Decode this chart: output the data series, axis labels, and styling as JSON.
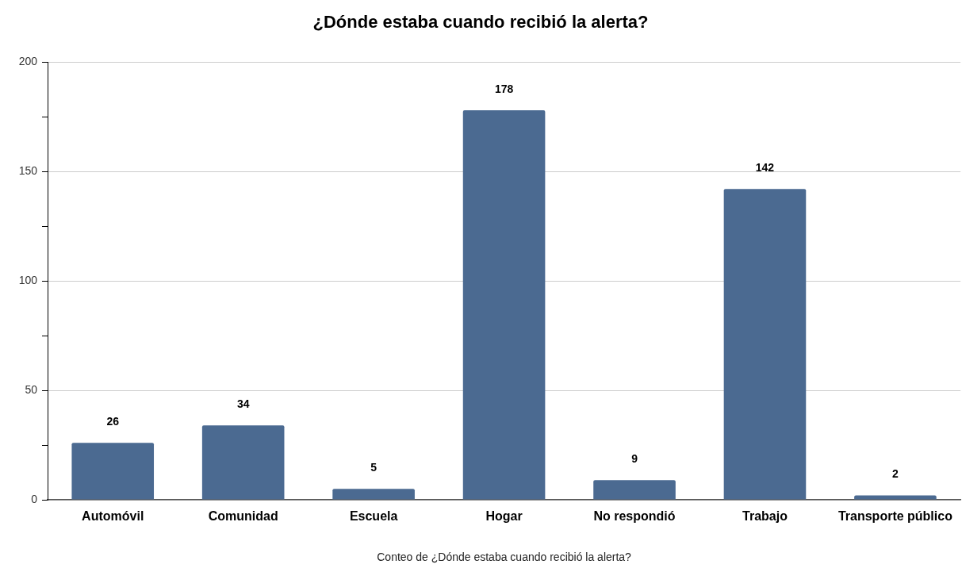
{
  "chart_data": {
    "type": "bar",
    "title": "¿Dónde estaba cuando recibió la alerta?",
    "xlabel": "Conteo de ¿Dónde estaba cuando recibió la alerta?",
    "categories": [
      "Automóvil",
      "Comunidad",
      "Escuela",
      "Hogar",
      "No respondió",
      "Trabajo",
      "Transporte público"
    ],
    "values": [
      26,
      34,
      5,
      178,
      9,
      142,
      2
    ],
    "color": "#4b6a91",
    "ylim": [
      0,
      200
    ],
    "yticks": [
      0,
      {
        "value": 25,
        "label": null
      },
      50,
      {
        "value": 75,
        "label": null
      },
      100,
      {
        "value": 125,
        "label": null
      },
      150,
      {
        "value": 175,
        "label": null
      },
      200
    ],
    "grid": "y",
    "data_labels": true
  }
}
